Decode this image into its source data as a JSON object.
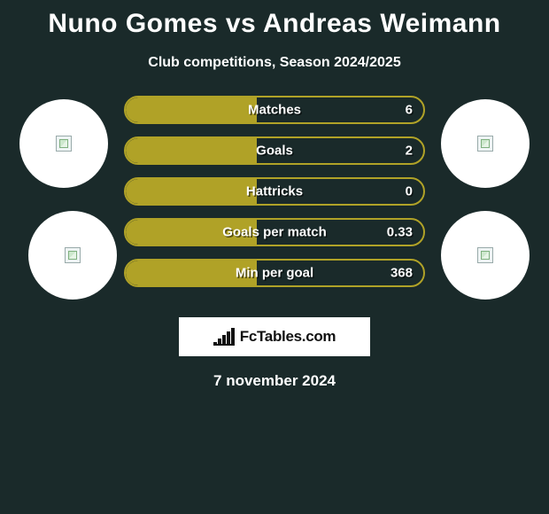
{
  "title": "Nuno Gomes vs Andreas Weimann",
  "subtitle": "Club competitions, Season 2024/2025",
  "date_text": "7 november 2024",
  "logo_text": "FcTables.com",
  "colors": {
    "bar_fill": "#b0a227",
    "bar_border": "#b0a227",
    "row_bg": "#1a2a2a",
    "photo_bg": "#ffffff",
    "logo_bg": "#ffffff",
    "text": "#ffffff"
  },
  "stats": [
    {
      "label": "Matches",
      "value": "6",
      "fill_pct": 44
    },
    {
      "label": "Goals",
      "value": "2",
      "fill_pct": 44
    },
    {
      "label": "Hattricks",
      "value": "0",
      "fill_pct": 44
    },
    {
      "label": "Goals per match",
      "value": "0.33",
      "fill_pct": 44
    },
    {
      "label": "Min per goal",
      "value": "368",
      "fill_pct": 44
    }
  ],
  "logo_bars": [
    4,
    8,
    12,
    16,
    20
  ],
  "players": {
    "left": [
      {
        "name": "player-photo-1"
      },
      {
        "name": "player-photo-2"
      }
    ],
    "right": [
      {
        "name": "player-photo-3"
      },
      {
        "name": "player-photo-4"
      }
    ]
  }
}
